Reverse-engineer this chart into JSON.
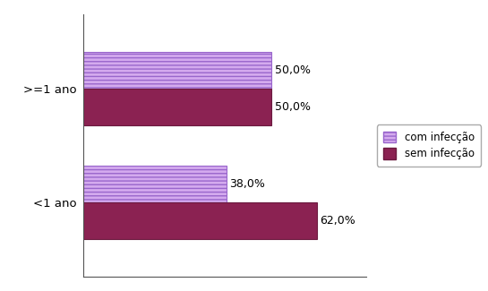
{
  "categories": [
    ">=1 ano",
    "<1 ano"
  ],
  "com_infeccao": [
    50.0,
    38.0
  ],
  "sem_infeccao": [
    50.0,
    62.0
  ],
  "color_com": "#d4aaee",
  "color_sem": "#8B2252",
  "label_com": "com infecção",
  "label_sem": "sem infecção",
  "xlim": [
    0,
    75
  ],
  "bar_height": 0.32,
  "background_color": "#ffffff",
  "text_color": "#000000",
  "hatch": "////",
  "edgecolor_com": "#9966cc",
  "edgecolor_sem": "#6b1a3f"
}
